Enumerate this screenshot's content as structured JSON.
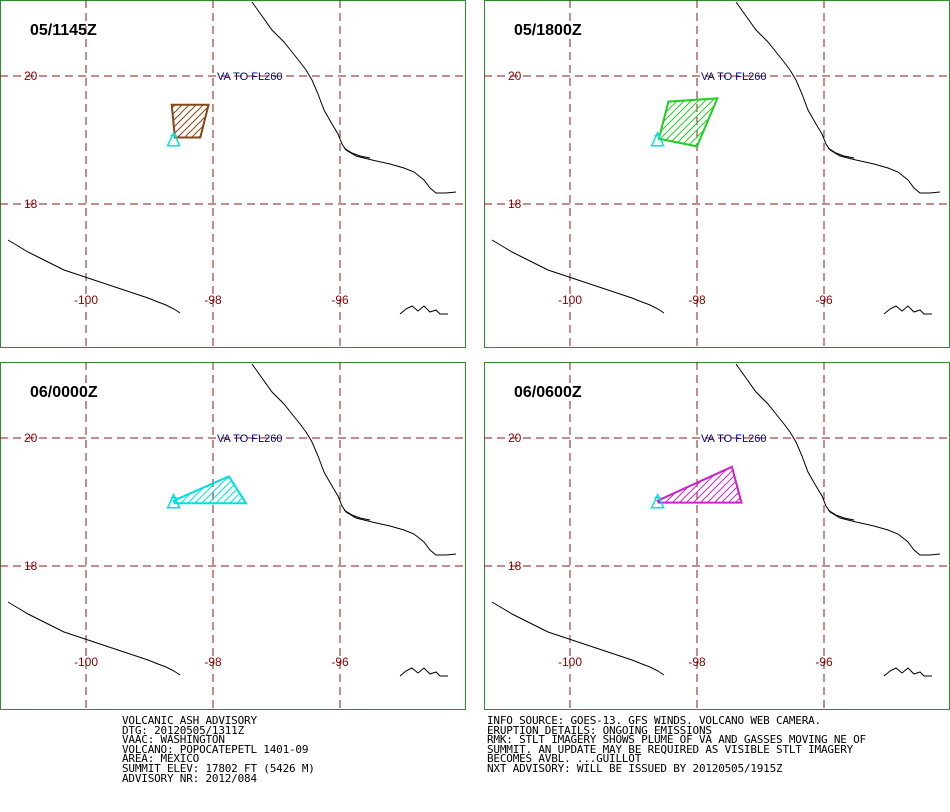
{
  "colors": {
    "border": "#2e8b2e",
    "grid": "#8b1a1a",
    "label": "#8b0000",
    "annotation": "#00008b",
    "volcano": "#00e0e0",
    "coast": "#000000"
  },
  "map": {
    "lat_labels": [
      "20",
      "18"
    ],
    "lon_labels": [
      "-100",
      "-98",
      "-96"
    ],
    "annotation": "VA TO FL260"
  },
  "panels": [
    {
      "time": "05/1145Z",
      "color": "#8b4513",
      "polygon": [
        [
          -98.65,
          19.55
        ],
        [
          -98.07,
          19.55
        ],
        [
          -98.2,
          19.04
        ],
        [
          -98.6,
          19.04
        ]
      ]
    },
    {
      "time": "05/1800Z",
      "color": "#22cc22",
      "polygon": [
        [
          -98.6,
          19.02
        ],
        [
          -98.45,
          19.6
        ],
        [
          -97.68,
          19.65
        ],
        [
          -98.0,
          18.9
        ]
      ]
    },
    {
      "time": "06/0000Z",
      "color": "#00e0e0",
      "polygon": [
        [
          -98.62,
          19.02
        ],
        [
          -97.75,
          19.4
        ],
        [
          -97.48,
          18.98
        ],
        [
          -98.6,
          18.98
        ]
      ]
    },
    {
      "time": "06/0600Z",
      "color": "#cc22cc",
      "polygon": [
        [
          -98.62,
          19.02
        ],
        [
          -97.45,
          19.55
        ],
        [
          -97.3,
          18.99
        ],
        [
          -98.6,
          18.99
        ]
      ]
    }
  ],
  "advisory_left": [
    "VOLCANIC ASH ADVISORY",
    "DTG: 20120505/1311Z",
    "VAAC: WASHINGTON",
    "VOLCANO: POPOCATEPETL 1401-09",
    "AREA: MEXICO",
    "SUMMIT ELEV: 17802 FT (5426 M)",
    "ADVISORY NR: 2012/084"
  ],
  "advisory_right": [
    "INFO SOURCE: GOES-13. GFS WINDS. VOLCANO WEB CAMERA.",
    "ERUPTION DETAILS: ONGOING EMISSIONS",
    "RMK: STLT IMAGERY SHOWS PLUME OF VA AND GASSES MOVING NE OF",
    "SUMMIT. AN UPDATE MAY BE REQUIRED AS VISIBLE STLT IMAGERY",
    "BECOMES AVBL. ...GUILLOT",
    "NXT ADVISORY: WILL BE ISSUED BY 20120505/1915Z"
  ]
}
